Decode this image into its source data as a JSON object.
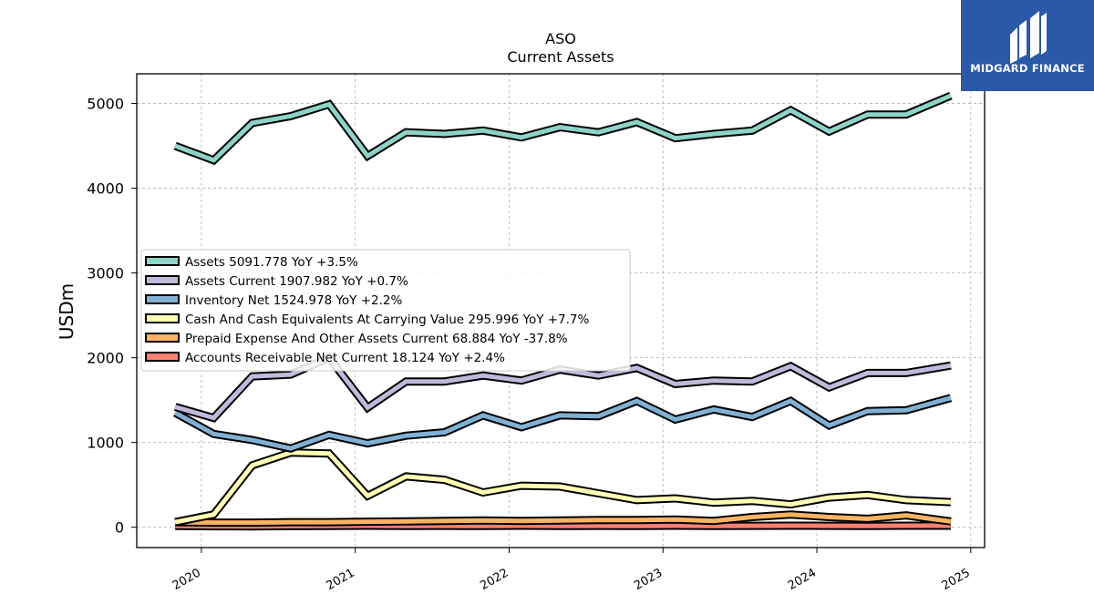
{
  "logo": {
    "text": "MIDGARD FINANCE",
    "background": "#2b58a8"
  },
  "chart_data": {
    "type": "line",
    "title": "ASO",
    "subtitle": "Current  Assets",
    "ylabel": "USDm",
    "xlabel": "",
    "xlim": [
      2019.58,
      2025.09
    ],
    "ylim": [
      -240,
      5350
    ],
    "yticks": [
      0,
      1000,
      2000,
      3000,
      4000,
      5000
    ],
    "xticks": [
      "2020",
      "2021",
      "2022",
      "2023",
      "2024",
      "2025"
    ],
    "xtick_values": [
      2020,
      2021,
      2022,
      2023,
      2024,
      2025
    ],
    "grid": true,
    "legend_position": "center-left",
    "x": [
      2019.83,
      2020.08,
      2020.33,
      2020.58,
      2020.83,
      2021.08,
      2021.33,
      2021.58,
      2021.83,
      2022.08,
      2022.33,
      2022.58,
      2022.83,
      2023.08,
      2023.33,
      2023.58,
      2023.83,
      2024.08,
      2024.33,
      2024.58,
      2024.87
    ],
    "series": [
      {
        "name": "Assets",
        "legend": "Assets  5091.778 YoY +3.5%",
        "color": "#8dd3c7",
        "values": [
          4500,
          4330,
          4770,
          4850,
          4990,
          4380,
          4660,
          4640,
          4680,
          4600,
          4720,
          4660,
          4780,
          4590,
          4640,
          4680,
          4920,
          4670,
          4870,
          4870,
          5092
        ]
      },
      {
        "name": "Assets Current",
        "legend": "Assets Current  1907.982 YoY +0.7%",
        "color": "#bebada",
        "values": [
          1420,
          1290,
          1780,
          1800,
          2000,
          1410,
          1720,
          1720,
          1790,
          1730,
          1860,
          1790,
          1880,
          1690,
          1730,
          1720,
          1900,
          1650,
          1820,
          1820,
          1908
        ]
      },
      {
        "name": "Inventory Net",
        "legend": "Inventory Net  1524.978 YoY +2.2%",
        "color": "#80b1d3",
        "values": [
          1350,
          1100,
          1030,
          930,
          1090,
          990,
          1080,
          1120,
          1320,
          1180,
          1320,
          1310,
          1490,
          1270,
          1390,
          1300,
          1490,
          1200,
          1370,
          1380,
          1525
        ]
      },
      {
        "name": "Cash And Cash Equivalents At Carrying Value",
        "legend": "Cash And Cash Equivalents At Carrying Value  295.996 YoY +7.7%",
        "color": "#ffffb3",
        "values": [
          60,
          150,
          730,
          880,
          870,
          370,
          600,
          560,
          410,
          490,
          480,
          400,
          320,
          340,
          290,
          310,
          270,
          350,
          380,
          320,
          296
        ]
      },
      {
        "name": "Prepaid Expense And Other Assets Current",
        "legend": "Prepaid Expense And Other Assets Current  68.884 YoY -37.8%",
        "color": "#fdb462",
        "values": [
          60,
          55,
          55,
          60,
          60,
          65,
          70,
          75,
          80,
          75,
          80,
          85,
          85,
          90,
          75,
          120,
          150,
          120,
          100,
          140,
          69
        ]
      },
      {
        "name": "Accounts Receivable Net Current",
        "legend": "Accounts Receivable Net Current  18.124 YoY +2.4%",
        "color": "#fb8072",
        "values": [
          15,
          12,
          10,
          14,
          16,
          18,
          15,
          17,
          15,
          18,
          15,
          17,
          15,
          18,
          15,
          17,
          18,
          17,
          16,
          18,
          18
        ]
      }
    ]
  }
}
